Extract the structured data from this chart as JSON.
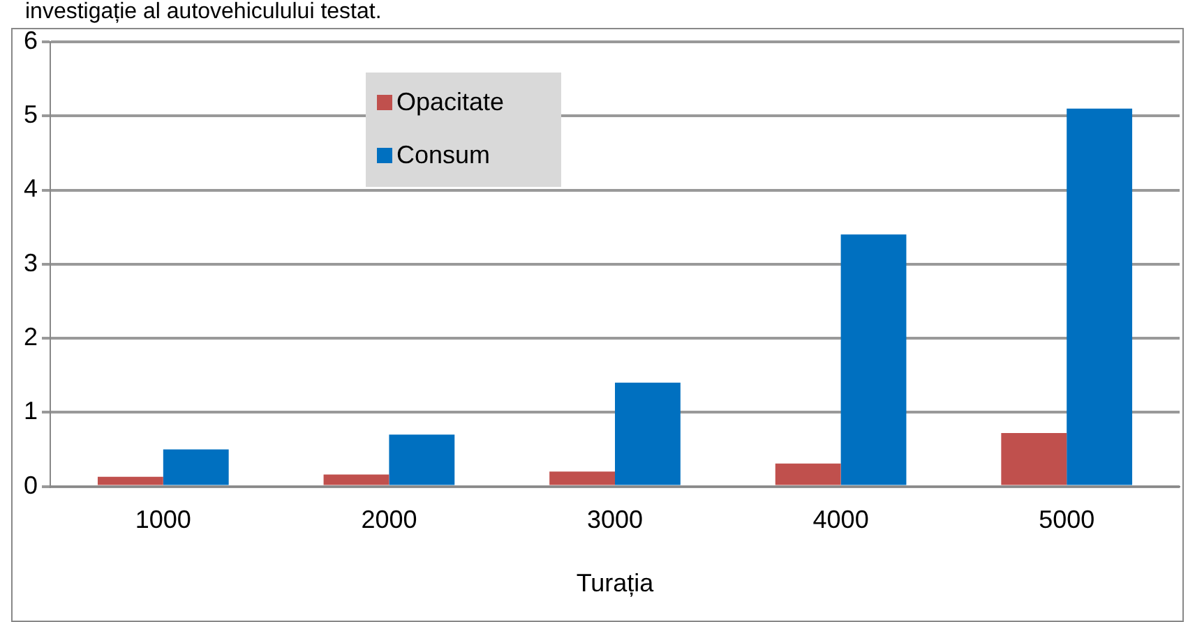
{
  "chart_data": {
    "type": "bar",
    "title": "investigație al autovehiculului testat.",
    "xlabel": "Turația",
    "categories": [
      "1000",
      "2000",
      "3000",
      "4000",
      "5000"
    ],
    "series": [
      {
        "name": "Opacitate",
        "color": "#c0504d",
        "values": [
          0.13,
          0.16,
          0.2,
          0.31,
          0.72
        ]
      },
      {
        "name": "Consum",
        "color": "#0070c0",
        "values": [
          0.5,
          0.7,
          1.4,
          3.4,
          5.1
        ]
      }
    ],
    "ylim": [
      0,
      6
    ],
    "yticks": [
      0,
      1,
      2,
      3,
      4,
      5,
      6
    ],
    "grid": "y",
    "legend": "top left"
  }
}
